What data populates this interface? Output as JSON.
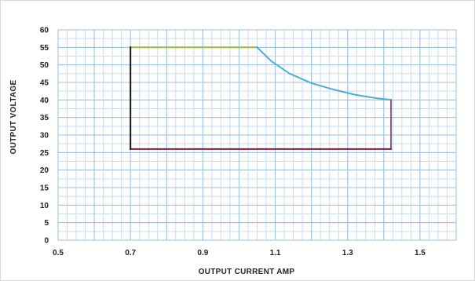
{
  "chart_data": {
    "type": "line",
    "xlabel": "OUTPUT CURRENT AMP",
    "ylabel": "OUTPUT  VOLTAGE",
    "xlim": [
      0.5,
      1.6
    ],
    "ylim": [
      0,
      60
    ],
    "x_ticks": [
      "0.5",
      "0.7",
      "0.9",
      "1.1",
      "1.3",
      "1.5"
    ],
    "x_tick_values": [
      0.5,
      0.7,
      0.9,
      1.1,
      1.3,
      1.5
    ],
    "y_ticks": [
      "0",
      "5",
      "10",
      "15",
      "20",
      "25",
      "30",
      "35",
      "40",
      "45",
      "50",
      "55",
      "60"
    ],
    "y_tick_values": [
      0,
      5,
      10,
      15,
      20,
      25,
      30,
      35,
      40,
      45,
      50,
      55,
      60
    ],
    "grid": true,
    "series": [
      {
        "color": "#9bbb3c",
        "points": [
          [
            0.7,
            55
          ],
          [
            1.05,
            55
          ]
        ]
      },
      {
        "color": "#4aafd0",
        "points": [
          [
            1.05,
            55
          ],
          [
            1.09,
            51
          ],
          [
            1.14,
            47.5
          ],
          [
            1.2,
            44.8
          ],
          [
            1.26,
            43
          ],
          [
            1.32,
            41.5
          ],
          [
            1.38,
            40.5
          ],
          [
            1.42,
            40
          ]
        ]
      },
      {
        "color": "#8c5a8c",
        "points": [
          [
            1.42,
            40
          ],
          [
            1.42,
            26
          ]
        ]
      },
      {
        "color": "#8b1a2e",
        "points": [
          [
            1.42,
            26
          ],
          [
            0.7,
            26
          ]
        ]
      },
      {
        "color": "#151515",
        "points": [
          [
            0.7,
            26
          ],
          [
            0.7,
            55
          ]
        ]
      }
    ]
  }
}
